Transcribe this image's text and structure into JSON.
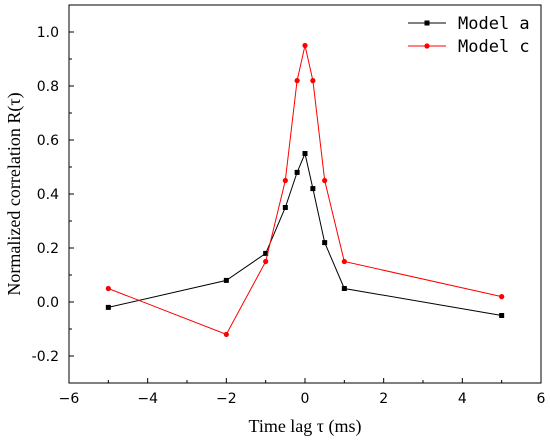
{
  "chart_data": {
    "type": "line",
    "xlabel": "Time lag τ (ms)",
    "ylabel": "Normalized correlation R(τ)",
    "xlim": [
      -6,
      6
    ],
    "ylim": [
      -0.3,
      1.1
    ],
    "x_ticks": [
      -6,
      -4,
      -2,
      0,
      2,
      4,
      6
    ],
    "x_tick_labels": [
      "−6",
      "−4",
      "−2",
      "0",
      "2",
      "4",
      "6"
    ],
    "y_ticks": [
      -0.2,
      0.0,
      0.2,
      0.4,
      0.6,
      0.8,
      1.0
    ],
    "y_tick_labels": [
      "-0.2",
      "0.0",
      "0.2",
      "0.4",
      "0.6",
      "0.8",
      "1.0"
    ],
    "grid": false,
    "legend_position": "top-right",
    "series": [
      {
        "name": "Model a",
        "color": "#000000",
        "marker": "square",
        "x": [
          -5,
          -2,
          -1,
          -0.5,
          -0.2,
          0,
          0.2,
          0.5,
          1,
          5
        ],
        "y": [
          -0.02,
          0.08,
          0.18,
          0.35,
          0.48,
          0.55,
          0.42,
          0.22,
          0.05,
          -0.05
        ]
      },
      {
        "name": "Model c",
        "color": "#ff0000",
        "marker": "circle",
        "x": [
          -5,
          -2,
          -1,
          -0.5,
          -0.2,
          0,
          0.2,
          0.5,
          1,
          5
        ],
        "y": [
          0.05,
          -0.12,
          0.15,
          0.45,
          0.82,
          0.95,
          0.82,
          0.45,
          0.15,
          0.02
        ]
      }
    ]
  }
}
